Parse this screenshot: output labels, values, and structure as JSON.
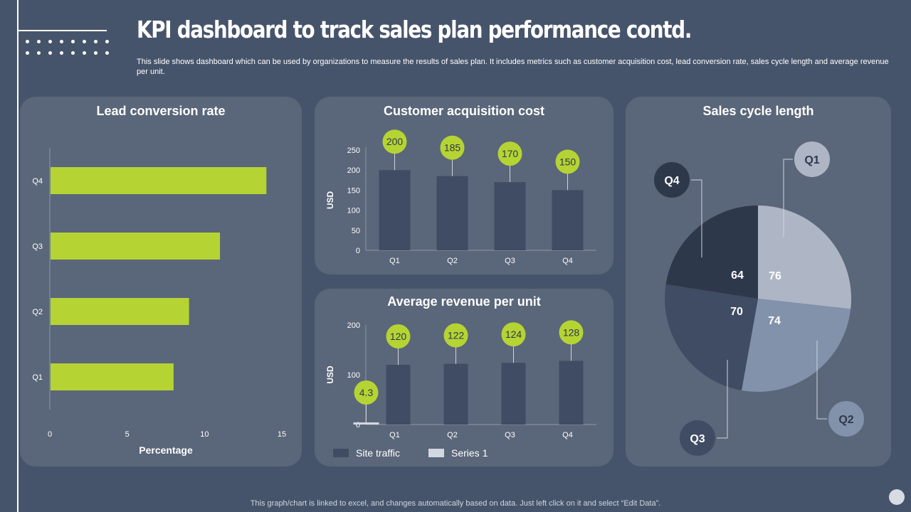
{
  "header": {
    "title": "KPI dashboard to track sales plan performance contd.",
    "subtitle": "This slide shows dashboard which can be used by organizations to measure the results of sales plan. It includes metrics such as customer acquisition cost, lead conversion rate, sales cycle length and average revenue per unit."
  },
  "footer": {
    "note": "This graph/chart is linked to excel,  and changes automatically based on data. Just left click on it and select “Edit Data”."
  },
  "colors": {
    "accent": "#b5d433",
    "bar_dark": "#3f4c63",
    "panel": "#5a6679",
    "background": "#46546b"
  },
  "chart_data": [
    {
      "id": "lead",
      "type": "bar",
      "orientation": "horizontal",
      "title": "Lead conversion rate",
      "categories": [
        "Q1",
        "Q2",
        "Q3",
        "Q4"
      ],
      "values": [
        8,
        9,
        11,
        14
      ],
      "xlabel": "Percentage",
      "xlim": [
        0,
        15
      ],
      "xticks": [
        "0",
        "5",
        "10",
        "15"
      ],
      "grid": false
    },
    {
      "id": "cac",
      "type": "bar",
      "title": "Customer acquisition cost",
      "categories": [
        "Q1",
        "Q2",
        "Q3",
        "Q4"
      ],
      "values": [
        200,
        185,
        170,
        150
      ],
      "data_labels": [
        "200",
        "185",
        "170",
        "150"
      ],
      "ylabel": "USD",
      "ylim": [
        0,
        250
      ],
      "yticks": [
        "0",
        "50",
        "100",
        "150",
        "200",
        "250"
      ],
      "grid": false
    },
    {
      "id": "arpu",
      "type": "bar",
      "title": "Average revenue per unit",
      "categories": [
        "Q1",
        "Q2",
        "Q3",
        "Q4"
      ],
      "series": [
        {
          "name": "Site traffic",
          "values": [
            120,
            122,
            124,
            128
          ],
          "labels": [
            "120",
            "122",
            "124",
            "128"
          ]
        },
        {
          "name": "Series 1",
          "values": [
            4.3,
            null,
            null,
            null
          ],
          "labels": [
            "4.3"
          ]
        }
      ],
      "ylabel": "USD",
      "ylim": [
        0,
        200
      ],
      "yticks": [
        "0",
        "100",
        "200"
      ],
      "legend": "bottom-left",
      "grid": false
    },
    {
      "id": "cycle",
      "type": "pie",
      "title": "Sales cycle length",
      "slices": [
        {
          "label": "Q1",
          "value": 76,
          "value_label": "76",
          "color": "#aeb6c6"
        },
        {
          "label": "Q2",
          "value": 74,
          "value_label": "74",
          "color": "#8292ab"
        },
        {
          "label": "Q3",
          "value": 70,
          "value_label": "70",
          "color": "#3f4c63"
        },
        {
          "label": "Q4",
          "value": 64,
          "value_label": "64",
          "color": "#2e384b"
        }
      ]
    }
  ]
}
